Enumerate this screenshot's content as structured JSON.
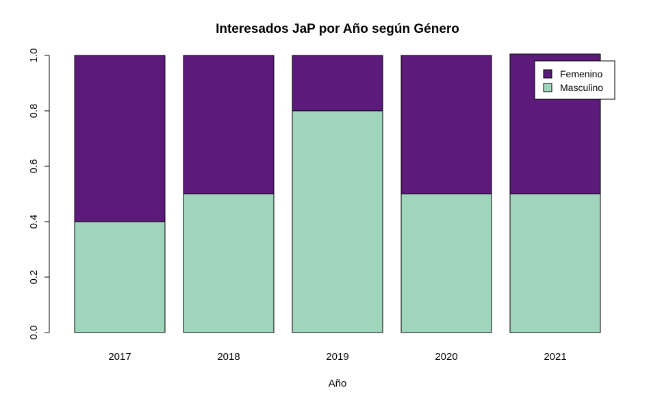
{
  "chart_data": {
    "type": "bar",
    "stacked": true,
    "title": "Interesados JaP por Año según Género",
    "xlabel": "Año",
    "ylabel": "",
    "categories": [
      "2017",
      "2018",
      "2019",
      "2020",
      "2021"
    ],
    "series": [
      {
        "name": "Masculino",
        "color": "#9fd5bb",
        "values": [
          0.4,
          0.5,
          0.8,
          0.5,
          0.5
        ]
      },
      {
        "name": "Femenino",
        "color": "#5c1a7b",
        "values": [
          0.6,
          0.5,
          0.2,
          0.5,
          0.505
        ]
      }
    ],
    "ylim": [
      0,
      1.0
    ],
    "yticks": [
      "0.0",
      "0.2",
      "0.4",
      "0.6",
      "0.8",
      "1.0"
    ],
    "grid": false,
    "legend": {
      "placement": "top-right",
      "entries": [
        {
          "label": "Femenino",
          "color": "#5c1a7b"
        },
        {
          "label": "Masculino",
          "color": "#9fd5bb"
        }
      ]
    }
  }
}
